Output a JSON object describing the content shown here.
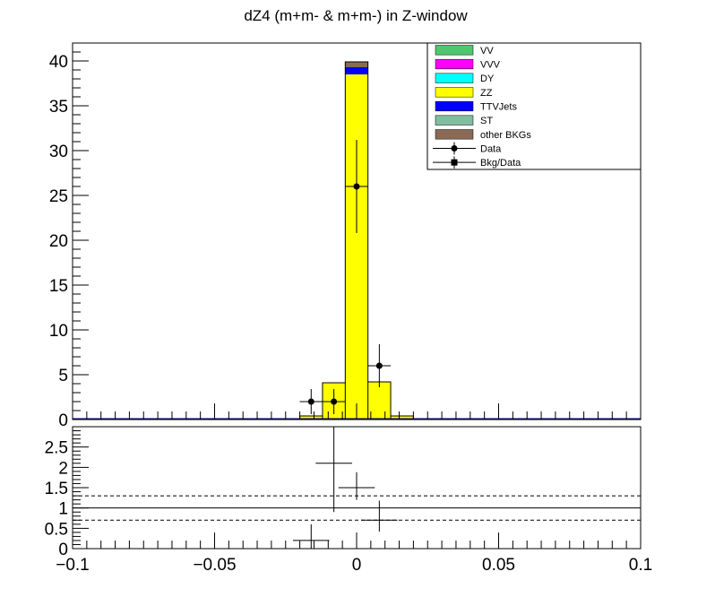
{
  "chart_data": {
    "type": "bar",
    "title": "dZ4 (m+m- & m+m-) in Z-window",
    "xlim": [
      -0.1,
      0.1
    ],
    "x_ticks": [
      -0.1,
      -0.05,
      0,
      0.05,
      0.1
    ],
    "x_tick_labels": [
      "−0.1",
      "−0.05",
      "0",
      "0.05",
      "0.1"
    ],
    "stacked": true,
    "bin_width": 0.008,
    "top_panel": {
      "ylim": [
        0,
        42
      ],
      "y_ticks": [
        0,
        5,
        10,
        15,
        20,
        25,
        30,
        35,
        40
      ],
      "y_tick_labels": [
        "0",
        "5",
        "10",
        "15",
        "20",
        "25",
        "30",
        "35",
        "40"
      ],
      "bin_centers": [
        -0.032,
        -0.024,
        -0.016,
        -0.008,
        0.0,
        0.008,
        0.016,
        0.024
      ],
      "series": [
        {
          "name": "ZZ",
          "color": "#ffff00",
          "values": [
            0.05,
            0.1,
            0.4,
            4.1,
            38.5,
            4.2,
            0.4,
            0.1
          ]
        },
        {
          "name": "TTVJets",
          "color": "#0000ff",
          "values": [
            0.0,
            0.0,
            0.0,
            0.0,
            0.8,
            0.0,
            0.0,
            0.0
          ]
        },
        {
          "name": "other BKGs",
          "color": "#8b6a55",
          "values": [
            0.0,
            0.0,
            0.0,
            0.0,
            0.6,
            0.0,
            0.0,
            0.0
          ]
        }
      ],
      "data_points": [
        {
          "x": -0.016,
          "y": 2.0,
          "err": 1.4
        },
        {
          "x": -0.008,
          "y": 2.0,
          "err": 1.4
        },
        {
          "x": 0.0,
          "y": 26.0,
          "err": 5.2
        },
        {
          "x": 0.008,
          "y": 6.0,
          "err": 2.4
        }
      ]
    },
    "bottom_panel": {
      "ylim": [
        0,
        3.0
      ],
      "y_ticks": [
        0,
        0.5,
        1,
        1.5,
        2,
        2.5
      ],
      "y_tick_labels": [
        "0",
        "0.5",
        "1",
        "1.5",
        "2",
        "2.5"
      ],
      "reference_lines": [
        0.7,
        1.0,
        1.3
      ],
      "ratio_points": [
        {
          "x": -0.016,
          "y": 0.2,
          "err_low": 0.2,
          "err_high": 0.4
        },
        {
          "x": -0.008,
          "y": 2.1,
          "err_low": 1.2,
          "err_high": 0.9
        },
        {
          "x": 0.0,
          "y": 1.5,
          "err_low": 0.3,
          "err_high": 0.38
        },
        {
          "x": 0.008,
          "y": 0.7,
          "err_low": 0.28,
          "err_high": 0.48
        }
      ]
    },
    "legend": {
      "placement": "top-right",
      "entries": [
        {
          "label": "VV",
          "kind": "box",
          "color": "#4fc76f"
        },
        {
          "label": "VVV",
          "kind": "box",
          "color": "#ff00ff"
        },
        {
          "label": "DY",
          "kind": "box",
          "color": "#00ffff"
        },
        {
          "label": "ZZ",
          "kind": "box",
          "color": "#ffff00"
        },
        {
          "label": "TTVJets",
          "kind": "box",
          "color": "#0000ff"
        },
        {
          "label": "ST",
          "kind": "box",
          "color": "#7fbf9f"
        },
        {
          "label": "other BKGs",
          "kind": "box",
          "color": "#8b6a55"
        },
        {
          "label": "Data",
          "kind": "circle",
          "color": "#000000"
        },
        {
          "label": "Bkg/Data",
          "kind": "square",
          "color": "#000000"
        }
      ]
    }
  }
}
